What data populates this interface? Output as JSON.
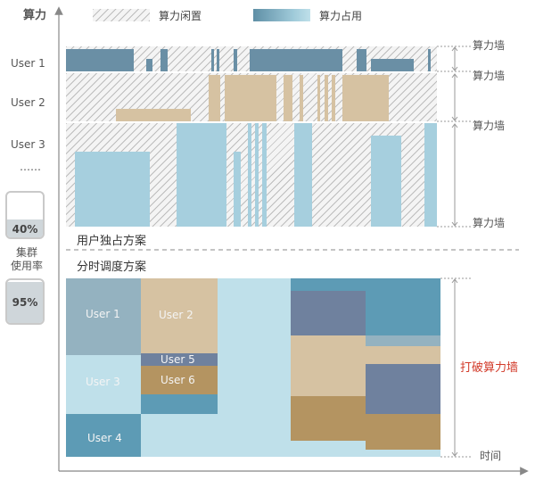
{
  "axes": {
    "y_label": "算力",
    "x_label": "时间"
  },
  "legend": {
    "idle": "算力闲置",
    "used": "算力占用"
  },
  "users_left": [
    "User 1",
    "User 2",
    "User 3",
    "……"
  ],
  "wall_label": "算力墙",
  "section_exclusive": "用户独占方案",
  "section_timeshare": "分时调度方案",
  "cluster": {
    "label": "集群\n使用率",
    "before": "40%",
    "after": "95%",
    "before_value": 0.4,
    "after_value": 0.95
  },
  "break_wall": "打破算力墙",
  "cells": [
    "User 1",
    "User 2",
    "User 5",
    "User 6",
    "User 3",
    "User 4"
  ],
  "colors": {
    "blue_dark": "#6a8fa5",
    "blue_light": "#a6cfde",
    "tan": "#d6c2a2",
    "slate": "#6f819e",
    "brown": "#b49461",
    "teal": "#5d9bb5"
  }
}
